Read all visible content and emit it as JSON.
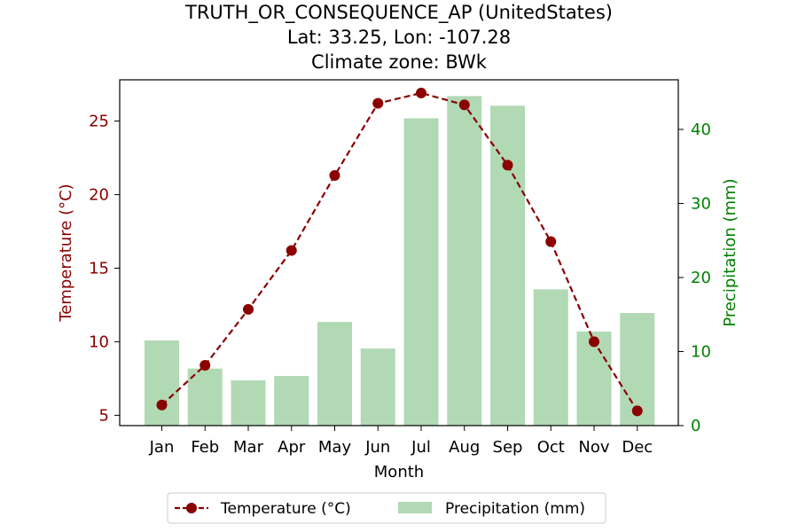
{
  "chart_data": {
    "type": "bar+line",
    "title_lines": [
      "TRUTH_OR_CONSEQUENCE_AP (UnitedStates)",
      "Lat: 33.25, Lon: -107.28",
      "Climate zone: BWk"
    ],
    "xlabel": "Month",
    "ylabel_left": "Temperature (°C)",
    "ylabel_right": "Precipitation (mm)",
    "categories": [
      "Jan",
      "Feb",
      "Mar",
      "Apr",
      "May",
      "Jun",
      "Jul",
      "Aug",
      "Sep",
      "Oct",
      "Nov",
      "Dec"
    ],
    "temperature": [
      5.7,
      8.4,
      12.2,
      16.2,
      21.3,
      26.2,
      26.9,
      26.1,
      22.0,
      16.8,
      10.0,
      5.3
    ],
    "precipitation": [
      11.5,
      7.7,
      6.1,
      6.7,
      14.0,
      10.4,
      41.5,
      44.5,
      43.2,
      18.4,
      12.7,
      15.2
    ],
    "ylim_left": [
      4.3,
      27.8
    ],
    "yticks_left": [
      5,
      10,
      15,
      20,
      25
    ],
    "ylim_right": [
      0,
      46.7
    ],
    "yticks_right": [
      0,
      10,
      20,
      30,
      40
    ],
    "legend": {
      "position": "bottom-center",
      "items": [
        "Temperature (°C)",
        "Precipitation (mm)"
      ]
    },
    "colors": {
      "temperature": "#8b0000",
      "precipitation": "#b1d9b4",
      "left_axis": "#8b0000",
      "right_axis": "#008000"
    },
    "grid": false
  }
}
